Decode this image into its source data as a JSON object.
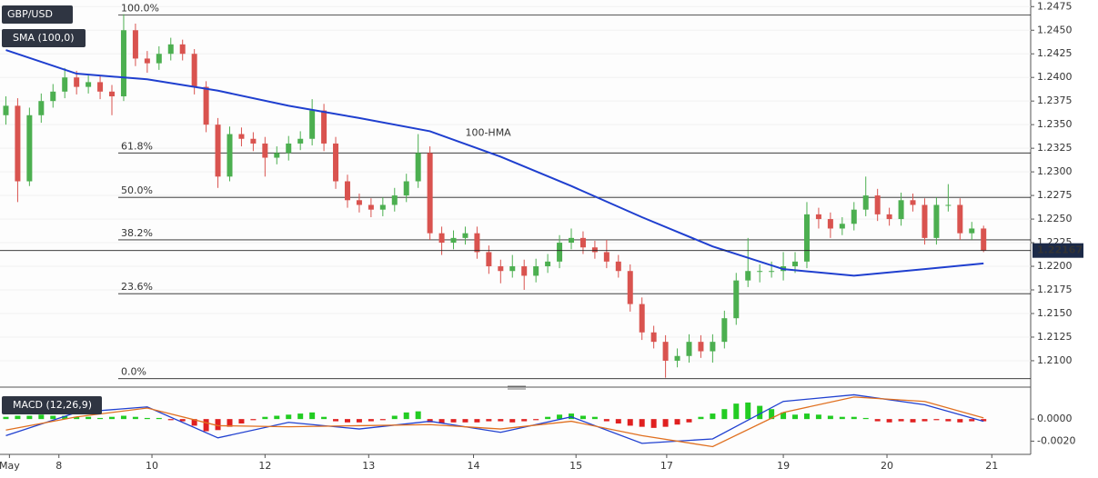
{
  "chart_data": {
    "type": "candlestick",
    "title": "GBP/USD",
    "up_color": "#4caf50",
    "down_color": "#d9534f",
    "xlim": [
      -0.5,
      87
    ],
    "xticks": [
      {
        "value": 0.3,
        "label": "May"
      },
      {
        "value": 4.5,
        "label": "8"
      },
      {
        "value": 12.4,
        "label": "10"
      },
      {
        "value": 22,
        "label": "12"
      },
      {
        "value": 30.8,
        "label": "13"
      },
      {
        "value": 39.7,
        "label": "14"
      },
      {
        "value": 48.4,
        "label": "15"
      },
      {
        "value": 56.1,
        "label": "17"
      },
      {
        "value": 66,
        "label": "19"
      },
      {
        "value": 74.8,
        "label": "20"
      },
      {
        "value": 83.7,
        "label": "21"
      }
    ],
    "ylim": [
      1.2073,
      1.2482
    ],
    "yticks": [
      1.2475,
      {
        "value": 1.245,
        "label": "1.2450"
      },
      1.2425,
      {
        "value": 1.24,
        "label": "1.2400"
      },
      1.2375,
      {
        "value": 1.235,
        "label": "1.2350"
      },
      1.2325,
      {
        "value": 1.23,
        "label": "1.2300"
      },
      1.2275,
      {
        "value": 1.225,
        "label": "1.2250"
      },
      1.2225,
      {
        "value": 1.22,
        "label": "1.2200"
      },
      1.2175,
      {
        "value": 1.215,
        "label": "1.2150"
      },
      1.2125,
      {
        "value": 1.21,
        "label": "1.2100"
      }
    ],
    "ohlc": [
      [
        1.236,
        1.238,
        1.235,
        1.237
      ],
      [
        1.237,
        1.2378,
        1.2268,
        1.229
      ],
      [
        1.229,
        1.2368,
        1.2285,
        1.236
      ],
      [
        1.236,
        1.2383,
        1.2352,
        1.2375
      ],
      [
        1.2375,
        1.2393,
        1.2368,
        1.2385
      ],
      [
        1.2385,
        1.241,
        1.2378,
        1.24
      ],
      [
        1.24,
        1.2407,
        1.2382,
        1.239
      ],
      [
        1.239,
        1.2402,
        1.2383,
        1.2395
      ],
      [
        1.2395,
        1.2402,
        1.2377,
        1.2385
      ],
      [
        1.2385,
        1.2392,
        1.236,
        1.238
      ],
      [
        1.238,
        1.2467,
        1.2375,
        1.245
      ],
      [
        1.245,
        1.2457,
        1.2412,
        1.242
      ],
      [
        1.242,
        1.2428,
        1.2405,
        1.2415
      ],
      [
        1.2415,
        1.2433,
        1.2408,
        1.2425
      ],
      [
        1.2425,
        1.2442,
        1.2418,
        1.2435
      ],
      [
        1.2435,
        1.244,
        1.2418,
        1.2425
      ],
      [
        1.2425,
        1.243,
        1.2382,
        1.239
      ],
      [
        1.239,
        1.2396,
        1.2342,
        1.235
      ],
      [
        1.235,
        1.2357,
        1.2283,
        1.2295
      ],
      [
        1.2295,
        1.2348,
        1.229,
        1.234
      ],
      [
        1.234,
        1.2347,
        1.2327,
        1.2335
      ],
      [
        1.2335,
        1.2342,
        1.2322,
        1.233
      ],
      [
        1.233,
        1.2337,
        1.2295,
        1.2315
      ],
      [
        1.2315,
        1.2327,
        1.2308,
        1.232
      ],
      [
        1.232,
        1.2338,
        1.2312,
        1.233
      ],
      [
        1.233,
        1.2343,
        1.2323,
        1.2335
      ],
      [
        1.2335,
        1.2377,
        1.2328,
        1.2365
      ],
      [
        1.2365,
        1.2372,
        1.2322,
        1.233
      ],
      [
        1.233,
        1.2337,
        1.2282,
        1.229
      ],
      [
        1.229,
        1.2297,
        1.2262,
        1.227
      ],
      [
        1.227,
        1.2277,
        1.2257,
        1.2265
      ],
      [
        1.2265,
        1.2272,
        1.2252,
        1.226
      ],
      [
        1.226,
        1.2273,
        1.2253,
        1.2265
      ],
      [
        1.2265,
        1.2283,
        1.2258,
        1.2275
      ],
      [
        1.2275,
        1.2298,
        1.2268,
        1.229
      ],
      [
        1.229,
        1.234,
        1.2283,
        1.232
      ],
      [
        1.232,
        1.2327,
        1.2228,
        1.2235
      ],
      [
        1.2235,
        1.2242,
        1.2212,
        1.2225
      ],
      [
        1.2225,
        1.2238,
        1.2218,
        1.223
      ],
      [
        1.223,
        1.2242,
        1.2223,
        1.2235
      ],
      [
        1.2235,
        1.2242,
        1.2208,
        1.2215
      ],
      [
        1.2215,
        1.2222,
        1.2192,
        1.22
      ],
      [
        1.22,
        1.2207,
        1.2182,
        1.2195
      ],
      [
        1.2195,
        1.2212,
        1.2188,
        1.22
      ],
      [
        1.22,
        1.2207,
        1.2175,
        1.219
      ],
      [
        1.219,
        1.2208,
        1.2183,
        1.22
      ],
      [
        1.22,
        1.2213,
        1.2193,
        1.2205
      ],
      [
        1.2205,
        1.2233,
        1.2198,
        1.2225
      ],
      [
        1.2225,
        1.224,
        1.2218,
        1.223
      ],
      [
        1.223,
        1.2237,
        1.2213,
        1.222
      ],
      [
        1.222,
        1.2227,
        1.2208,
        1.2215
      ],
      [
        1.2215,
        1.2228,
        1.2198,
        1.2205
      ],
      [
        1.2205,
        1.2212,
        1.2188,
        1.2195
      ],
      [
        1.2195,
        1.2202,
        1.2152,
        1.216
      ],
      [
        1.216,
        1.2167,
        1.2122,
        1.213
      ],
      [
        1.213,
        1.2137,
        1.2113,
        1.212
      ],
      [
        1.212,
        1.2127,
        1.2082,
        1.21
      ],
      [
        1.21,
        1.2113,
        1.2093,
        1.2105
      ],
      [
        1.2105,
        1.2128,
        1.2098,
        1.212
      ],
      [
        1.212,
        1.2127,
        1.2103,
        1.211
      ],
      [
        1.211,
        1.2128,
        1.2098,
        1.212
      ],
      [
        1.212,
        1.2153,
        1.2113,
        1.2145
      ],
      [
        1.2145,
        1.2193,
        1.2138,
        1.2185
      ],
      [
        1.2185,
        1.223,
        1.2178,
        1.2195
      ],
      [
        1.2195,
        1.2202,
        1.2183,
        1.2195
      ],
      [
        1.2195,
        1.2205,
        1.2188,
        1.2195
      ],
      [
        1.2195,
        1.2215,
        1.2185,
        1.22
      ],
      [
        1.22,
        1.2215,
        1.2193,
        1.2205
      ],
      [
        1.2205,
        1.2268,
        1.2198,
        1.2255
      ],
      [
        1.2255,
        1.2262,
        1.224,
        1.225
      ],
      [
        1.225,
        1.2257,
        1.223,
        1.224
      ],
      [
        1.224,
        1.2252,
        1.2233,
        1.2245
      ],
      [
        1.2245,
        1.2268,
        1.2238,
        1.226
      ],
      [
        1.226,
        1.2295,
        1.2253,
        1.2275
      ],
      [
        1.2275,
        1.2282,
        1.2248,
        1.2255
      ],
      [
        1.2255,
        1.2262,
        1.2243,
        1.225
      ],
      [
        1.225,
        1.2278,
        1.2243,
        1.227
      ],
      [
        1.227,
        1.2277,
        1.2258,
        1.2265
      ],
      [
        1.2265,
        1.2272,
        1.2223,
        1.223
      ],
      [
        1.223,
        1.2273,
        1.2223,
        1.2265
      ],
      [
        1.2265,
        1.2287,
        1.2258,
        1.2265
      ],
      [
        1.2265,
        1.2272,
        1.2228,
        1.2235
      ],
      [
        1.2235,
        1.2247,
        1.2228,
        1.224
      ],
      [
        1.224,
        1.2243,
        1.2215,
        1.22167
      ]
    ],
    "sma": {
      "name": "SMA (100,0)",
      "annotation": "100-HMA",
      "color": "#1f3fcf",
      "x": [
        0,
        6,
        12,
        18,
        24,
        30,
        36,
        42,
        48,
        54,
        60,
        66,
        72,
        78,
        83
      ],
      "values": [
        1.2429,
        1.2404,
        1.2398,
        1.2386,
        1.237,
        1.2357,
        1.2343,
        1.2316,
        1.2285,
        1.2252,
        1.2221,
        1.2197,
        1.219,
        1.2197,
        1.2203
      ]
    },
    "fib_levels": [
      {
        "label": "100.0%",
        "value": 1.2466
      },
      {
        "label": "61.8%",
        "value": 1.232
      },
      {
        "label": "50.0%",
        "value": 1.2273
      },
      {
        "label": "38.2%",
        "value": 1.2228
      },
      {
        "label": "23.6%",
        "value": 1.2171
      },
      {
        "label": "0.0%",
        "value": 1.2081
      }
    ],
    "last_price": 1.22167,
    "macd": {
      "title": "MACD (12,26,9)",
      "ylim": [
        -0.0032,
        0.0024
      ],
      "yticks": [
        {
          "value": 0,
          "label": "0.0000"
        },
        {
          "value": -0.002,
          "label": "-0.0020"
        }
      ],
      "histogram": {
        "up_color": "#22cc22",
        "down_color": "#e02020",
        "values": [
          0.0002,
          0.0003,
          0.0003,
          0.0004,
          0.0003,
          0.0003,
          0.0002,
          0.0002,
          0.0001,
          0.0002,
          0.0003,
          0.0002,
          0.0001,
          0.0001,
          -0.0001,
          -0.0002,
          -0.0006,
          -0.0011,
          -0.001,
          -0.0007,
          -0.0004,
          -0.0001,
          0.0002,
          0.0003,
          0.0004,
          0.0005,
          0.0006,
          0.0002,
          -0.0002,
          -0.0003,
          -0.0003,
          -0.0002,
          -0.0001,
          0.0003,
          0.0006,
          0.0007,
          -0.0003,
          -0.0004,
          -0.0003,
          -0.0003,
          -0.0003,
          -0.0002,
          -0.0002,
          -0.0003,
          -0.0002,
          -0.0001,
          0.0002,
          0.0004,
          0.0005,
          0.0003,
          0.0002,
          -0.0002,
          -0.0004,
          -0.0006,
          -0.0007,
          -0.0008,
          -0.0007,
          -0.0005,
          -0.0003,
          0.0002,
          0.0005,
          0.0009,
          0.0014,
          0.0015,
          0.0012,
          0.0009,
          0.0006,
          0.0004,
          0.0005,
          0.0004,
          0.0003,
          0.0002,
          0.0002,
          0.0001,
          -0.0002,
          -0.0003,
          -0.0002,
          -0.0003,
          -0.0002,
          -0.0001,
          -0.0002,
          -0.0003,
          -0.0002,
          -0.0002
        ]
      },
      "x": [
        0,
        6,
        12,
        18,
        24,
        30,
        36,
        42,
        48,
        54,
        60,
        66,
        72,
        78,
        83
      ],
      "macd_line": {
        "color": "#2040d0",
        "values": [
          -0.0015,
          0.0006,
          0.0011,
          -0.0017,
          -0.0003,
          -0.0009,
          -0.0002,
          -0.0012,
          0.0002,
          -0.0022,
          -0.0018,
          0.0016,
          0.0022,
          0.0013,
          -0.0002
        ]
      },
      "signal_line": {
        "color": "#e07020",
        "values": [
          -0.001,
          0.0002,
          0.001,
          -0.0006,
          -0.0007,
          -0.0006,
          -0.0005,
          -0.0009,
          -0.0002,
          -0.0015,
          -0.0025,
          0.0006,
          0.002,
          0.0016,
          0.0001
        ]
      }
    }
  }
}
